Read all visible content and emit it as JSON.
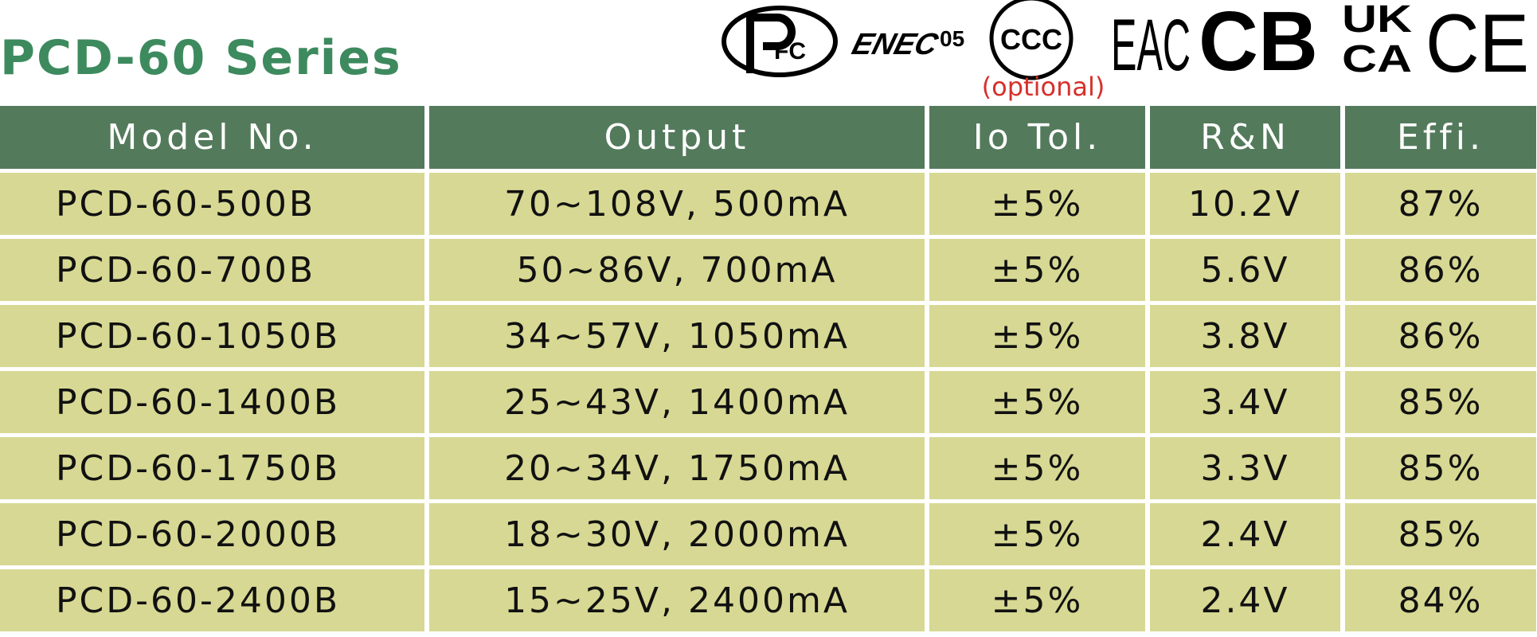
{
  "header": {
    "title": "PCD-60 Series",
    "logos": [
      "FC",
      "ENEC",
      "05",
      "CCC",
      "EAC",
      "CB",
      "UK",
      "CA",
      "CE"
    ],
    "optional_note": "(optional)"
  },
  "table": {
    "columns": [
      "Model No.",
      "Output",
      "Io Tol.",
      "R&N",
      "Effi."
    ],
    "rows": [
      [
        "PCD-60-500B",
        "70~108V, 500mA",
        "±5%",
        "10.2V",
        "87%"
      ],
      [
        "PCD-60-700B",
        "50~86V, 700mA",
        "±5%",
        "5.6V",
        "86%"
      ],
      [
        "PCD-60-1050B",
        "34~57V, 1050mA",
        "±5%",
        "3.8V",
        "86%"
      ],
      [
        "PCD-60-1400B",
        "25~43V, 1400mA",
        "±5%",
        "3.4V",
        "85%"
      ],
      [
        "PCD-60-1750B",
        "20~34V, 1750mA",
        "±5%",
        "3.3V",
        "85%"
      ],
      [
        "PCD-60-2000B",
        "18~30V, 2000mA",
        "±5%",
        "2.4V",
        "85%"
      ],
      [
        "PCD-60-2400B",
        "15~25V, 2400mA",
        "±5%",
        "2.4V",
        "84%"
      ]
    ]
  }
}
